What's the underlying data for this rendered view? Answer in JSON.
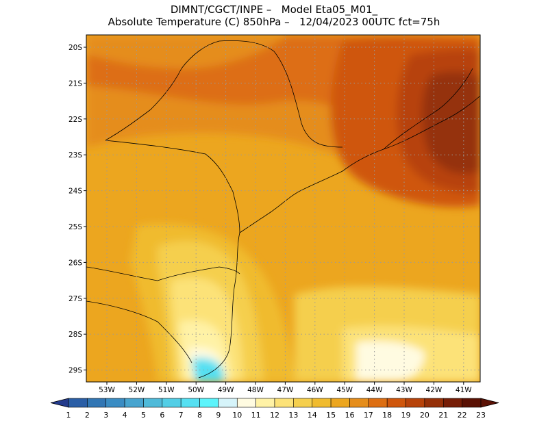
{
  "title": {
    "line1": "DIMNT/CGCT/INPE –   Model Eta05_M01_",
    "line2": "Absolute Temperature (C) 850hPa –   12/04/2023 00UTC fct=75h"
  },
  "map": {
    "lat_ticks": [
      "20S",
      "21S",
      "22S",
      "23S",
      "24S",
      "25S",
      "26S",
      "27S",
      "28S",
      "29S"
    ],
    "lon_ticks": [
      "53W",
      "52W",
      "51W",
      "50W",
      "49W",
      "48W",
      "47W",
      "46W",
      "45W",
      "44W",
      "43W",
      "42W",
      "41W"
    ],
    "grid": true
  },
  "colorbar": {
    "labels": [
      "1",
      "2",
      "3",
      "4",
      "5",
      "6",
      "7",
      "8",
      "9",
      "10",
      "11",
      "12",
      "13",
      "14",
      "15",
      "16",
      "17",
      "18",
      "19",
      "20",
      "21",
      "22",
      "23"
    ],
    "colors": [
      "#233a8c",
      "#2a5ea6",
      "#3176b4",
      "#3a8cc3",
      "#47a4cf",
      "#4fbad9",
      "#52cee6",
      "#55e0f2",
      "#5cf4fb",
      "#d6f4fa",
      "#fffbe1",
      "#fff2a6",
      "#fce278",
      "#f5cf4d",
      "#f0bb2e",
      "#eca61f",
      "#e58d1b",
      "#dd6e12",
      "#cf560c",
      "#b7430a",
      "#953008",
      "#761d06",
      "#5a1104"
    ]
  }
}
